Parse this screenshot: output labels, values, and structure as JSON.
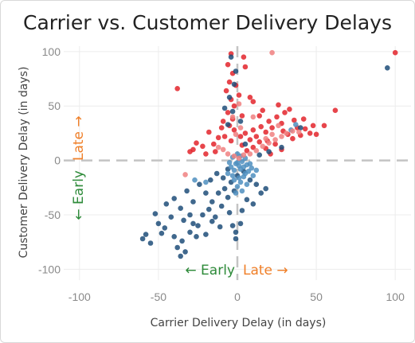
{
  "chart_data": {
    "type": "scatter",
    "title": "Carrier vs. Customer Delivery Delays",
    "xlabel": "Carrier Delivery Delay (in days)",
    "ylabel": "Customer Delivery Delay (in days)",
    "xlim": [
      -110,
      110
    ],
    "ylim": [
      -110,
      105
    ],
    "xticks": [
      -100,
      -50,
      0,
      50,
      100
    ],
    "yticks": [
      -100,
      -50,
      0,
      50,
      100
    ],
    "xtick_labels": [
      "-100",
      "-50",
      "0",
      "50",
      "100"
    ],
    "ytick_labels": [
      "-100",
      "-50",
      "0",
      "50",
      "100"
    ],
    "grid": true,
    "reference_lines": {
      "x": 0,
      "y": 0,
      "style": "dashed"
    },
    "annotations": {
      "x_early": "← Early",
      "x_late": "Late →",
      "y_early": "← Early",
      "y_late": "Late →"
    },
    "colors": {
      "early": "#2e8b3a",
      "late": "#f07f28",
      "series_late": "#e3242b",
      "series_early": "#1f4e79",
      "series_light": "#4f8fc0",
      "series_pink": "#f08080"
    },
    "series": [
      {
        "color": "#e3242b",
        "points": [
          [
            100,
            99
          ],
          [
            -38,
            66
          ],
          [
            62,
            46
          ],
          [
            -28,
            10
          ],
          [
            -22,
            13
          ],
          [
            -4,
            98
          ],
          [
            -6,
            88
          ],
          [
            -3,
            80
          ],
          [
            -5,
            72
          ],
          [
            -7,
            64
          ],
          [
            -4,
            56
          ],
          [
            -2,
            50
          ],
          [
            -6,
            44
          ],
          [
            -3,
            38
          ],
          [
            -5,
            32
          ],
          [
            -2,
            28
          ],
          [
            -8,
            22
          ],
          [
            -4,
            18
          ],
          [
            2,
            22
          ],
          [
            5,
            25
          ],
          [
            8,
            19
          ],
          [
            10,
            28
          ],
          [
            12,
            22
          ],
          [
            15,
            31
          ],
          [
            18,
            26
          ],
          [
            20,
            36
          ],
          [
            22,
            30
          ],
          [
            25,
            40
          ],
          [
            28,
            34
          ],
          [
            30,
            44
          ],
          [
            32,
            24
          ],
          [
            35,
            20
          ],
          [
            38,
            30
          ],
          [
            40,
            23
          ],
          [
            43,
            29
          ],
          [
            46,
            25
          ],
          [
            50,
            24
          ],
          [
            55,
            32
          ],
          [
            24,
            15
          ],
          [
            28,
            10
          ],
          [
            18,
            11
          ],
          [
            14,
            17
          ],
          [
            10,
            12
          ],
          [
            6,
            9
          ],
          [
            3,
            14
          ],
          [
            -12,
            21
          ],
          [
            -15,
            15
          ],
          [
            -18,
            26
          ],
          [
            -10,
            30
          ],
          [
            -14,
            8
          ],
          [
            -20,
            6
          ],
          [
            -26,
            16
          ],
          [
            -30,
            8
          ],
          [
            8,
            58
          ],
          [
            10,
            54
          ],
          [
            5,
            86
          ],
          [
            3,
            41
          ],
          [
            16,
            46
          ],
          [
            21,
            6
          ],
          [
            26,
            51
          ],
          [
            33,
            47
          ],
          [
            36,
            37
          ],
          [
            4,
            95
          ],
          [
            -1,
            69
          ],
          [
            1,
            60
          ],
          [
            -9,
            36
          ],
          [
            14,
            41
          ],
          [
            19,
            18
          ],
          [
            42,
            38
          ],
          [
            48,
            32
          ],
          [
            29,
            27
          ]
        ]
      },
      {
        "color": "#1f4e79",
        "points": [
          [
            -60,
            -72
          ],
          [
            -58,
            -68
          ],
          [
            -55,
            -76
          ],
          [
            -50,
            -58
          ],
          [
            -46,
            -62
          ],
          [
            -42,
            -52
          ],
          [
            -40,
            -70
          ],
          [
            -38,
            -80
          ],
          [
            -36,
            -88
          ],
          [
            -33,
            -84
          ],
          [
            -35,
            -74
          ],
          [
            -30,
            -66
          ],
          [
            -28,
            -58
          ],
          [
            -25,
            -60
          ],
          [
            -22,
            -50
          ],
          [
            -20,
            -68
          ],
          [
            -18,
            -45
          ],
          [
            -16,
            -38
          ],
          [
            -14,
            -52
          ],
          [
            -12,
            -30
          ],
          [
            -10,
            -42
          ],
          [
            -8,
            -26
          ],
          [
            -6,
            -34
          ],
          [
            -4,
            -20
          ],
          [
            -2,
            -28
          ],
          [
            0,
            -14
          ],
          [
            -3,
            -60
          ],
          [
            -1,
            -72
          ],
          [
            -5,
            -48
          ],
          [
            -45,
            -40
          ],
          [
            -40,
            -35
          ],
          [
            -36,
            -44
          ],
          [
            -32,
            -28
          ],
          [
            -28,
            -38
          ],
          [
            -24,
            -22
          ],
          [
            -20,
            -30
          ],
          [
            -17,
            -18
          ],
          [
            -13,
            -12
          ],
          [
            -9,
            -16
          ],
          [
            -6,
            -8
          ],
          [
            4,
            -10
          ],
          [
            8,
            -18
          ],
          [
            12,
            -22
          ],
          [
            15,
            -30
          ],
          [
            6,
            -36
          ],
          [
            3,
            -46
          ],
          [
            10,
            -40
          ],
          [
            18,
            -26
          ],
          [
            2,
            -58
          ],
          [
            -1,
            -66
          ],
          [
            -4,
            95
          ],
          [
            -2,
            70
          ],
          [
            -5,
            58
          ],
          [
            -3,
            45
          ],
          [
            -6,
            33
          ],
          [
            2,
            36
          ],
          [
            5,
            15
          ],
          [
            95,
            85
          ],
          [
            40,
            30
          ],
          [
            28,
            12
          ],
          [
            -30,
            -50
          ],
          [
            -26,
            -70
          ],
          [
            -16,
            -56
          ],
          [
            -11,
            -61
          ],
          [
            -52,
            -49
          ],
          [
            -48,
            -67
          ],
          [
            -34,
            -55
          ],
          [
            20,
            8
          ],
          [
            14,
            5
          ],
          [
            -8,
            48
          ],
          [
            -1,
            82
          ]
        ]
      },
      {
        "color": "#4f8fc0",
        "points": [
          [
            0,
            -2
          ],
          [
            1,
            -5
          ],
          [
            2,
            -8
          ],
          [
            -1,
            -3
          ],
          [
            3,
            -1
          ],
          [
            4,
            -6
          ],
          [
            -2,
            -9
          ],
          [
            5,
            -12
          ],
          [
            -3,
            -14
          ],
          [
            6,
            -4
          ],
          [
            1,
            -16
          ],
          [
            -4,
            -6
          ],
          [
            2,
            -20
          ],
          [
            7,
            -10
          ],
          [
            0,
            -24
          ],
          [
            -5,
            -2
          ],
          [
            8,
            -3
          ],
          [
            3,
            -28
          ],
          [
            -2,
            -18
          ],
          [
            4,
            -15
          ],
          [
            6,
            -22
          ],
          [
            -6,
            -12
          ],
          [
            9,
            -7
          ],
          [
            10,
            -14
          ],
          [
            -1,
            -30
          ],
          [
            12,
            -9
          ],
          [
            5,
            2
          ],
          [
            2,
            4
          ],
          [
            -3,
            3
          ],
          [
            0,
            6
          ],
          [
            34,
            28
          ],
          [
            37,
            33
          ],
          [
            -27,
            -18
          ],
          [
            -20,
            -20
          ]
        ]
      },
      {
        "color": "#f08080",
        "points": [
          [
            20,
            16
          ],
          [
            24,
            19
          ],
          [
            16,
            13
          ],
          [
            12,
            9
          ],
          [
            8,
            6
          ],
          [
            4,
            5
          ],
          [
            1,
            2
          ],
          [
            -2,
            4
          ],
          [
            -6,
            6
          ],
          [
            -9,
            10
          ],
          [
            -12,
            12
          ],
          [
            28,
            22
          ],
          [
            31,
            25
          ],
          [
            35,
            27
          ],
          [
            22,
            24
          ],
          [
            18,
            20
          ],
          [
            -1,
            24
          ],
          [
            2,
            30
          ],
          [
            -3,
            40
          ],
          [
            1,
            52
          ],
          [
            22,
            99
          ],
          [
            10,
            40
          ],
          [
            26,
            32
          ],
          [
            39,
            26
          ],
          [
            -33,
            -13
          ]
        ]
      }
    ]
  }
}
